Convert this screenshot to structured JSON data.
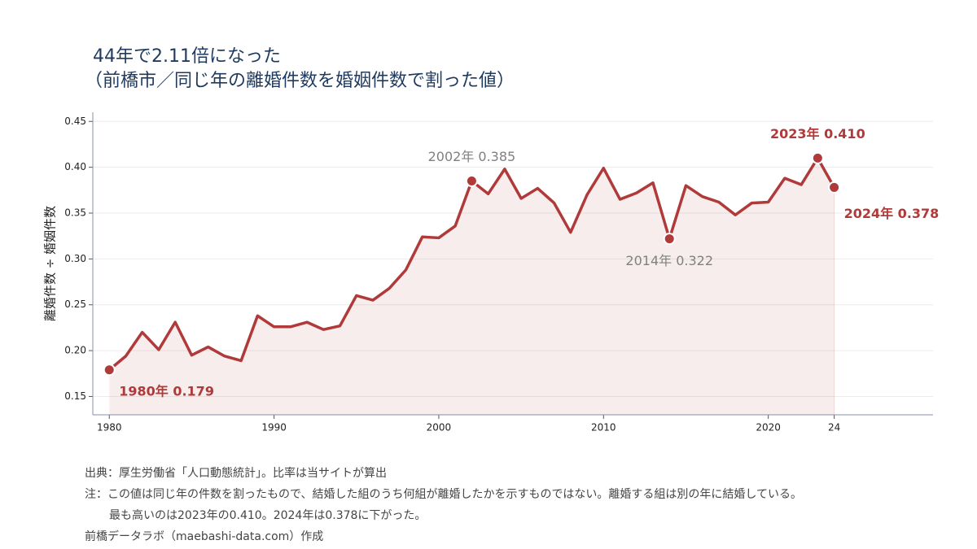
{
  "chart_data": {
    "type": "line",
    "title": [
      "44年で2.11倍になった",
      "（前橋市／同じ年の離婚件数を婚姻件数で割った値）"
    ],
    "y_label": "離婚件数 ÷ 婚姻件数",
    "x": [
      1980,
      1981,
      1982,
      1983,
      1984,
      1985,
      1986,
      1987,
      1988,
      1989,
      1990,
      1991,
      1992,
      1993,
      1994,
      1995,
      1996,
      1997,
      1998,
      1999,
      2000,
      2001,
      2002,
      2003,
      2004,
      2005,
      2006,
      2007,
      2008,
      2009,
      2010,
      2011,
      2012,
      2013,
      2014,
      2015,
      2016,
      2017,
      2018,
      2019,
      2020,
      2021,
      2022,
      2023,
      2024
    ],
    "series": [
      {
        "color": "#b03a3a",
        "values": [
          0.179,
          0.194,
          0.22,
          0.201,
          0.231,
          0.195,
          0.204,
          0.194,
          0.189,
          0.238,
          0.226,
          0.226,
          0.231,
          0.223,
          0.227,
          0.26,
          0.255,
          0.268,
          0.288,
          0.324,
          0.323,
          0.336,
          0.385,
          0.371,
          0.398,
          0.366,
          0.377,
          0.361,
          0.329,
          0.37,
          0.399,
          0.365,
          0.372,
          0.383,
          0.322,
          0.38,
          0.368,
          0.362,
          0.348,
          0.361,
          0.362,
          0.388,
          0.381,
          0.41,
          0.378
        ],
        "value_labels": [
          "1980年 0.179",
          null,
          null,
          null,
          null,
          null,
          null,
          null,
          null,
          null,
          null,
          null,
          null,
          null,
          null,
          null,
          null,
          null,
          null,
          null,
          null,
          null,
          "2002年 0.385",
          null,
          null,
          null,
          null,
          null,
          null,
          null,
          null,
          null,
          null,
          null,
          "2014年 0.322",
          null,
          null,
          null,
          null,
          null,
          null,
          null,
          null,
          "2023年 0.410",
          "2024年 0.378"
        ],
        "value_label_colors": [
          "#b03a3a",
          null,
          null,
          null,
          null,
          null,
          null,
          null,
          null,
          null,
          null,
          null,
          null,
          null,
          null,
          null,
          null,
          null,
          null,
          null,
          null,
          null,
          "#808080",
          null,
          null,
          null,
          null,
          null,
          null,
          null,
          null,
          null,
          null,
          null,
          "#808080",
          null,
          null,
          null,
          null,
          null,
          null,
          null,
          null,
          "#b03a3a",
          "#b03a3a"
        ]
      }
    ],
    "xlim": [
      1979,
      2030
    ],
    "xticks": [
      1980,
      1990,
      2000,
      2010,
      2020,
      {
        "value": 2024,
        "label": "24"
      }
    ],
    "ylim": [
      0.13,
      0.46
    ],
    "yticks": [
      0.15,
      {
        "value": 0.2,
        "label": "0.20"
      },
      0.25,
      {
        "value": 0.3,
        "label": "0.30"
      },
      0.35,
      {
        "value": 0.4,
        "label": "0.40"
      },
      0.45
    ],
    "grid": true,
    "area_fill": true,
    "footnotes": [
      "出典：厚生労働省「人口動態統計」。比率は当サイトが算出",
      "注：この値は同じ年の件数を割ったもので、結婚した組のうち何組が離婚したかを示すものではない。離婚する組は別の年に結婚している。",
      "最も高いのは2023年の0.410。2024年は0.378に下がった。",
      "前橋データラボ（maebashi-data.com）作成"
    ]
  }
}
